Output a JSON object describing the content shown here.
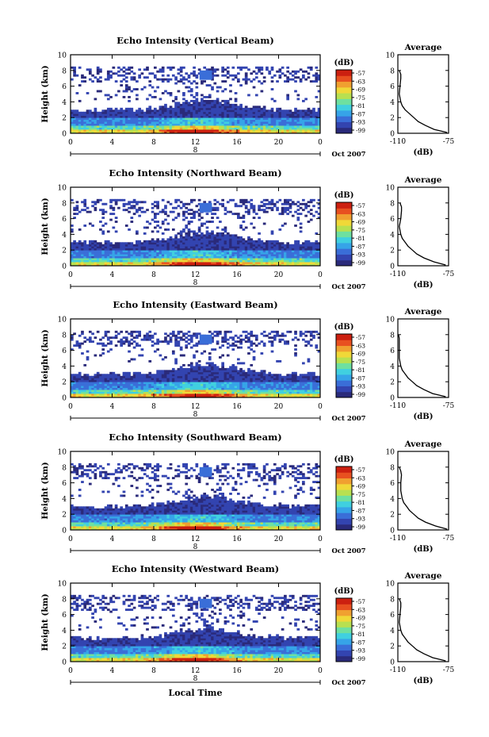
{
  "figure": {
    "x_axis_title": "Local Time",
    "date_label": "Oct 2007",
    "day_marker": "8",
    "colorbar_unit": "(dB)",
    "colorbar_ticks": [
      "-57",
      "-63",
      "-69",
      "-75",
      "-81",
      "-87",
      "-93",
      "-99"
    ],
    "colorscale": [
      "#2a2a7a",
      "#3344b0",
      "#3a6ed8",
      "#36a4e8",
      "#40d0e0",
      "#6ee0a0",
      "#b8e050",
      "#f0d838",
      "#f0a030",
      "#e85020",
      "#cc2010"
    ],
    "avg_title": "Average",
    "avg_xlabel": "(dB)",
    "avg_xticks": [
      "-110",
      "-75"
    ]
  },
  "chart_data": [
    {
      "type": "heatmap",
      "title": "Echo Intensity (Vertical Beam)",
      "xlabel": "",
      "ylabel": "Height (km)",
      "xticks": [
        "0",
        "4",
        "8",
        "12",
        "16",
        "20",
        "0"
      ],
      "yticks": [
        "0",
        "2",
        "4",
        "6",
        "8",
        "10"
      ],
      "xlim": [
        0,
        24
      ],
      "ylim": [
        0,
        10
      ],
      "color_range_db": [
        -99,
        -57
      ],
      "average_profile": {
        "title": "Average",
        "xlabel": "(dB)",
        "xlim": [
          -110,
          -75
        ],
        "ylim": [
          0,
          10
        ],
        "height_km": [
          0.1,
          0.5,
          1.0,
          1.5,
          2.0,
          2.5,
          3.0,
          3.5,
          4.0,
          5.0,
          6.0,
          7.0,
          7.5,
          8.0
        ],
        "db": [
          -76,
          -85,
          -91,
          -96,
          -99,
          -102,
          -105,
          -107,
          -108,
          -109,
          -108.5,
          -108,
          -108,
          -109
        ]
      }
    },
    {
      "type": "heatmap",
      "title": "Echo Intensity (Northward Beam)",
      "xlabel": "",
      "ylabel": "Height (km)",
      "xticks": [
        "0",
        "4",
        "8",
        "12",
        "16",
        "20",
        "0"
      ],
      "yticks": [
        "0",
        "2",
        "4",
        "6",
        "8",
        "10"
      ],
      "xlim": [
        0,
        24
      ],
      "ylim": [
        0,
        10
      ],
      "color_range_db": [
        -99,
        -57
      ],
      "average_profile": {
        "title": "Average",
        "xlabel": "(dB)",
        "xlim": [
          -110,
          -75
        ],
        "ylim": [
          0,
          10
        ],
        "height_km": [
          0.1,
          0.5,
          1.0,
          1.5,
          2.0,
          2.5,
          3.0,
          3.5,
          4.0,
          5.0,
          6.0,
          7.0,
          7.5,
          8.0
        ],
        "db": [
          -77,
          -85,
          -92,
          -97,
          -100,
          -103,
          -105,
          -107,
          -108,
          -109,
          -108,
          -107.5,
          -107.5,
          -108.5
        ]
      }
    },
    {
      "type": "heatmap",
      "title": "Echo Intensity (Eastward Beam)",
      "xlabel": "",
      "ylabel": "Height (km)",
      "xticks": [
        "0",
        "4",
        "8",
        "12",
        "16",
        "20",
        "0"
      ],
      "yticks": [
        "0",
        "2",
        "4",
        "6",
        "8",
        "10"
      ],
      "xlim": [
        0,
        24
      ],
      "ylim": [
        0,
        10
      ],
      "color_range_db": [
        -99,
        -57
      ],
      "average_profile": {
        "title": "Average",
        "xlabel": "(dB)",
        "xlim": [
          -110,
          -75
        ],
        "ylim": [
          0,
          10
        ],
        "height_km": [
          0.1,
          0.5,
          1.0,
          1.5,
          2.0,
          2.5,
          3.0,
          3.5,
          4.0,
          5.0,
          6.0,
          7.0,
          7.5,
          8.0
        ],
        "db": [
          -77,
          -86,
          -92,
          -97,
          -100,
          -103,
          -105,
          -107,
          -108,
          -109,
          -109,
          -109,
          -109,
          -109.5
        ]
      }
    },
    {
      "type": "heatmap",
      "title": "Echo Intensity (Southward Beam)",
      "xlabel": "",
      "ylabel": "Height (km)",
      "xticks": [
        "0",
        "4",
        "8",
        "12",
        "16",
        "20",
        "0"
      ],
      "yticks": [
        "0",
        "2",
        "4",
        "6",
        "8",
        "10"
      ],
      "xlim": [
        0,
        24
      ],
      "ylim": [
        0,
        10
      ],
      "color_range_db": [
        -99,
        -57
      ],
      "average_profile": {
        "title": "Average",
        "xlabel": "(dB)",
        "xlim": [
          -110,
          -75
        ],
        "ylim": [
          0,
          10
        ],
        "height_km": [
          0.1,
          0.5,
          1.0,
          1.5,
          2.0,
          2.5,
          3.0,
          3.5,
          4.0,
          5.0,
          6.0,
          7.0,
          7.5,
          8.0
        ],
        "db": [
          -76,
          -84,
          -91,
          -96,
          -99,
          -102,
          -104,
          -106,
          -107,
          -108,
          -108,
          -107.5,
          -108,
          -109
        ]
      }
    },
    {
      "type": "heatmap",
      "title": "Echo Intensity (Westward Beam)",
      "xlabel": "Local Time",
      "ylabel": "Height (km)",
      "xticks": [
        "0",
        "4",
        "8",
        "12",
        "16",
        "20",
        "0"
      ],
      "yticks": [
        "0",
        "2",
        "4",
        "6",
        "8",
        "10"
      ],
      "xlim": [
        0,
        24
      ],
      "ylim": [
        0,
        10
      ],
      "color_range_db": [
        -99,
        -57
      ],
      "average_profile": {
        "title": "Average",
        "xlabel": "(dB)",
        "xlim": [
          -110,
          -75
        ],
        "ylim": [
          0,
          10
        ],
        "height_km": [
          0.1,
          0.5,
          1.0,
          1.5,
          2.0,
          2.5,
          3.0,
          3.5,
          4.0,
          5.0,
          6.0,
          7.0,
          7.5,
          8.0
        ],
        "db": [
          -77,
          -86,
          -92,
          -97,
          -100,
          -103,
          -105,
          -107,
          -108,
          -109,
          -108.5,
          -108,
          -108,
          -109
        ]
      }
    }
  ]
}
